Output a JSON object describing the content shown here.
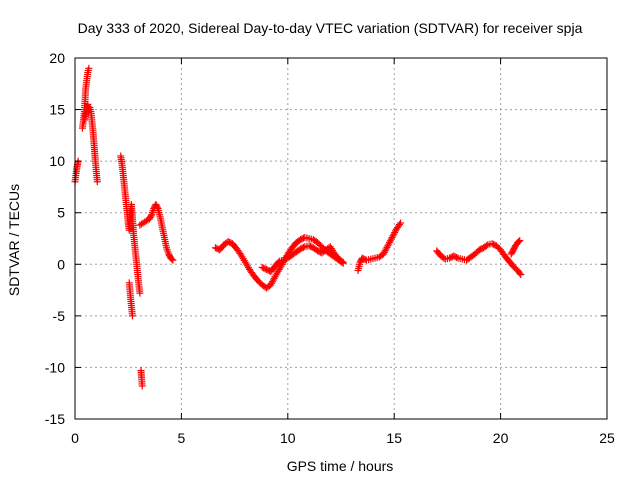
{
  "chart_data": {
    "type": "scatter",
    "title": "Day 333 of 2020, Sidereal Day-to-day VTEC variation (SDTVAR) for receiver spja",
    "xlabel": "GPS time / hours",
    "ylabel": "SDTVAR / TECUs",
    "xlim": [
      0,
      25
    ],
    "ylim": [
      -15,
      20
    ],
    "xticks": [
      "0",
      "5",
      "10",
      "15",
      "20",
      "25"
    ],
    "yticks": [
      "-15",
      "-10",
      "-5",
      "0",
      "5",
      "10",
      "15",
      "20"
    ],
    "grid": true,
    "marker": "plus",
    "color": "#ff0000",
    "series": [
      {
        "name": "SDTVAR spja",
        "segments": [
          [
            [
              0.0,
              8.0
            ],
            [
              0.05,
              8.8
            ],
            [
              0.1,
              9.5
            ],
            [
              0.15,
              10.0
            ]
          ],
          [
            [
              0.35,
              13.2
            ],
            [
              0.4,
              14.0
            ],
            [
              0.45,
              15.0
            ],
            [
              0.5,
              17.0
            ],
            [
              0.55,
              17.8
            ],
            [
              0.6,
              18.6
            ],
            [
              0.65,
              19.0
            ]
          ],
          [
            [
              0.45,
              14.0
            ],
            [
              0.5,
              14.5
            ],
            [
              0.55,
              15.0
            ],
            [
              0.6,
              15.5
            ],
            [
              0.65,
              14.8
            ],
            [
              0.7,
              15.2
            ],
            [
              0.75,
              14.8
            ],
            [
              0.8,
              13.8
            ],
            [
              0.85,
              12.8
            ],
            [
              0.9,
              11.5
            ],
            [
              0.95,
              10.2
            ],
            [
              1.0,
              9.0
            ],
            [
              1.05,
              8.0
            ]
          ],
          [
            [
              2.15,
              10.5
            ],
            [
              2.2,
              9.8
            ],
            [
              2.25,
              9.0
            ],
            [
              2.3,
              8.0
            ],
            [
              2.35,
              7.0
            ],
            [
              2.4,
              6.0
            ],
            [
              2.45,
              5.0
            ],
            [
              2.5,
              4.0
            ],
            [
              2.55,
              3.3
            ]
          ],
          [
            [
              2.55,
              4.0
            ],
            [
              2.6,
              5.0
            ],
            [
              2.65,
              5.8
            ],
            [
              2.7,
              4.5
            ],
            [
              2.75,
              3.0
            ],
            [
              2.8,
              2.0
            ],
            [
              2.85,
              1.0
            ],
            [
              2.9,
              0.0
            ],
            [
              2.95,
              -1.0
            ],
            [
              3.0,
              -2.0
            ],
            [
              3.05,
              -2.8
            ]
          ],
          [
            [
              2.55,
              -1.8
            ],
            [
              2.6,
              -3.0
            ],
            [
              2.65,
              -4.0
            ],
            [
              2.7,
              -5.0
            ]
          ],
          [
            [
              3.1,
              -10.3
            ],
            [
              3.13,
              -11.0
            ],
            [
              3.16,
              -11.8
            ]
          ],
          [
            [
              3.05,
              3.8
            ],
            [
              3.2,
              4.0
            ],
            [
              3.35,
              4.2
            ],
            [
              3.5,
              4.4
            ],
            [
              3.6,
              4.8
            ],
            [
              3.7,
              5.4
            ],
            [
              3.8,
              5.8
            ],
            [
              3.9,
              5.4
            ],
            [
              4.0,
              4.6
            ],
            [
              4.1,
              3.6
            ],
            [
              4.2,
              2.6
            ],
            [
              4.3,
              1.6
            ],
            [
              4.4,
              1.0
            ],
            [
              4.5,
              0.6
            ],
            [
              4.6,
              0.4
            ]
          ],
          [
            [
              6.6,
              1.6
            ],
            [
              6.8,
              1.4
            ],
            [
              7.0,
              1.9
            ],
            [
              7.2,
              2.2
            ],
            [
              7.4,
              2.0
            ],
            [
              7.6,
              1.5
            ],
            [
              7.8,
              0.9
            ],
            [
              8.0,
              0.2
            ],
            [
              8.2,
              -0.5
            ],
            [
              8.4,
              -1.1
            ],
            [
              8.6,
              -1.6
            ],
            [
              8.8,
              -2.0
            ],
            [
              9.0,
              -2.3
            ],
            [
              9.2,
              -2.0
            ],
            [
              9.4,
              -1.2
            ],
            [
              9.6,
              -0.5
            ],
            [
              9.8,
              0.3
            ],
            [
              10.0,
              1.0
            ],
            [
              10.2,
              1.6
            ],
            [
              10.4,
              2.1
            ],
            [
              10.6,
              2.4
            ],
            [
              10.8,
              2.6
            ],
            [
              11.0,
              2.5
            ],
            [
              11.2,
              2.4
            ],
            [
              11.4,
              2.1
            ],
            [
              11.6,
              1.7
            ],
            [
              11.8,
              1.3
            ],
            [
              12.0,
              1.0
            ],
            [
              12.2,
              0.7
            ],
            [
              12.4,
              0.4
            ],
            [
              12.6,
              0.1
            ]
          ],
          [
            [
              8.8,
              -0.3
            ],
            [
              9.0,
              -0.5
            ],
            [
              9.2,
              -0.7
            ],
            [
              9.4,
              -0.2
            ],
            [
              9.6,
              0.3
            ],
            [
              9.8,
              0.4
            ],
            [
              10.0,
              0.6
            ],
            [
              10.2,
              0.9
            ],
            [
              10.4,
              1.2
            ],
            [
              10.6,
              1.5
            ],
            [
              10.8,
              1.7
            ],
            [
              11.0,
              1.8
            ],
            [
              11.2,
              1.6
            ],
            [
              11.4,
              1.3
            ],
            [
              11.6,
              1.1
            ],
            [
              11.8,
              1.4
            ],
            [
              12.0,
              1.7
            ],
            [
              12.2,
              1.0
            ],
            [
              12.4,
              0.5
            ],
            [
              12.6,
              0.2
            ]
          ],
          [
            [
              13.3,
              -0.6
            ],
            [
              13.4,
              0.2
            ],
            [
              13.5,
              0.6
            ],
            [
              13.7,
              0.4
            ],
            [
              13.9,
              0.5
            ],
            [
              14.1,
              0.6
            ],
            [
              14.3,
              0.7
            ],
            [
              14.5,
              1.0
            ],
            [
              14.7,
              1.8
            ],
            [
              14.9,
              2.6
            ],
            [
              15.1,
              3.4
            ],
            [
              15.3,
              4.0
            ]
          ],
          [
            [
              17.0,
              1.3
            ],
            [
              17.2,
              0.8
            ],
            [
              17.4,
              0.5
            ],
            [
              17.6,
              0.6
            ],
            [
              17.8,
              0.8
            ],
            [
              18.0,
              0.6
            ],
            [
              18.2,
              0.5
            ],
            [
              18.4,
              0.4
            ],
            [
              18.6,
              0.7
            ],
            [
              18.8,
              1.0
            ],
            [
              19.0,
              1.4
            ],
            [
              19.2,
              1.6
            ],
            [
              19.4,
              1.9
            ],
            [
              19.6,
              2.0
            ],
            [
              19.8,
              1.8
            ],
            [
              20.0,
              1.4
            ],
            [
              20.2,
              0.8
            ],
            [
              20.4,
              0.3
            ],
            [
              20.6,
              -0.2
            ],
            [
              20.8,
              -0.6
            ],
            [
              20.95,
              -1.0
            ]
          ],
          [
            [
              20.5,
              1.0
            ],
            [
              20.6,
              1.4
            ],
            [
              20.7,
              1.8
            ],
            [
              20.8,
              2.1
            ],
            [
              20.9,
              2.3
            ]
          ]
        ]
      }
    ]
  }
}
